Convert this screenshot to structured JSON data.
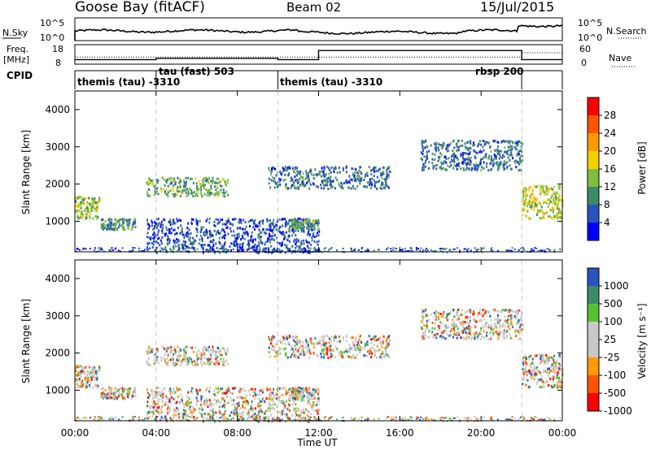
{
  "header": {
    "station": "Goose Bay (fitACF)",
    "beam": "Beam 02",
    "date": "15/Jul/2015"
  },
  "noise_panel": {
    "left_label": "N.Sky",
    "left_ticks": [
      "10^5",
      "10^0"
    ],
    "right_label": "N.Search",
    "right_ticks": [
      "10^5",
      "10^0"
    ]
  },
  "freq_panel": {
    "left_label_line1": "Freq.",
    "left_label_line2": "[MHz]",
    "left_ticks": [
      "18",
      "8"
    ],
    "right_label": "Nave",
    "right_ticks": [
      "60",
      "0"
    ]
  },
  "cpid_panel": {
    "label": "CPID",
    "segments": [
      {
        "text": "themis (tau) -3310",
        "start_hour": 0
      },
      {
        "text": "tau (fast) 503",
        "start_hour": 4
      },
      {
        "text": "themis (tau) -3310",
        "start_hour": 10
      },
      {
        "text": "rbsp 200",
        "start_hour": 22
      }
    ]
  },
  "power_panel": {
    "ylabel": "Slant Range [km]",
    "yticks": [
      "1000",
      "2000",
      "3000",
      "4000"
    ],
    "colorbar_label": "Power [dB]",
    "colorbar_ticks": [
      "4",
      "8",
      "12",
      "16",
      "20",
      "24",
      "28"
    ],
    "colors": [
      "#0000ff",
      "#2a52be",
      "#3c8a6a",
      "#7fbf3f",
      "#f5d000",
      "#ff9a00",
      "#ff5500",
      "#ff0000"
    ]
  },
  "velocity_panel": {
    "ylabel": "Slant Range [km]",
    "yticks": [
      "1000",
      "2000",
      "3000",
      "4000"
    ],
    "colorbar_label": "Velocity [m s⁻¹]",
    "colorbar_ticks": [
      "1000",
      "500",
      "100",
      "25",
      "-25",
      "-100",
      "-500",
      "-1000"
    ],
    "colors": [
      "#2a52be",
      "#3c8a6a",
      "#56c22e",
      "#c8c8c8",
      "#c8c8c8",
      "#ff9a00",
      "#ff5500",
      "#ff0000"
    ]
  },
  "xaxis": {
    "label": "Time UT",
    "ticks": [
      "00:00",
      "04:00",
      "08:00",
      "12:00",
      "16:00",
      "20:00",
      "00:00"
    ]
  },
  "chart_data": {
    "type": "heatmap",
    "title": "Goose Bay (fitACF)",
    "xlabel": "Time UT",
    "ylabel": "Slant Range [km]",
    "xlim_hours": [
      0,
      24
    ],
    "ylim_km": [
      180,
      4500
    ],
    "program_boundaries_hours": [
      4,
      10,
      22
    ],
    "freq_mhz": [
      {
        "start_hour": 0,
        "end_hour": 4,
        "value": 10.3
      },
      {
        "start_hour": 4,
        "end_hour": 10,
        "value": 11.0
      },
      {
        "start_hour": 10,
        "end_hour": 12,
        "value": 10.3
      },
      {
        "start_hour": 12,
        "end_hour": 22,
        "value": 15.0
      },
      {
        "start_hour": 22,
        "end_hour": 24,
        "value": 10.3
      }
    ],
    "nave": [
      {
        "start_hour": 0,
        "end_hour": 22,
        "value": 22
      },
      {
        "start_hour": 22,
        "end_hour": 24,
        "value": 35
      }
    ],
    "scatter_regions": [
      {
        "name": "early 1000-1600 km",
        "hours": [
          0,
          1.2
        ],
        "range_km": [
          1100,
          1700
        ],
        "power_db": 14
      },
      {
        "name": "early ~900 km",
        "hours": [
          1.2,
          3.0
        ],
        "range_km": [
          800,
          1100
        ],
        "power_db": 10
      },
      {
        "name": "morning 1700-2100 km",
        "hours": [
          3.5,
          7.5
        ],
        "range_km": [
          1700,
          2200
        ],
        "power_db": 12
      },
      {
        "name": "near range clutter",
        "hours": [
          3.5,
          12
        ],
        "range_km": [
          180,
          1100
        ],
        "power_db": 6
      },
      {
        "name": "midday 2000-2400 km",
        "hours": [
          9.5,
          15.5
        ],
        "range_km": [
          1900,
          2500
        ],
        "power_db": 8
      },
      {
        "name": "midday ~1000 km",
        "hours": [
          10.5,
          12
        ],
        "range_km": [
          800,
          1100
        ],
        "power_db": 12
      },
      {
        "name": "evening 2500-3200 km",
        "hours": [
          17,
          22
        ],
        "range_km": [
          2400,
          3200
        ],
        "power_db": 8
      },
      {
        "name": "late 1200-2000 km",
        "hours": [
          22,
          24
        ],
        "range_km": [
          1100,
          2000
        ],
        "power_db": 16
      }
    ]
  }
}
